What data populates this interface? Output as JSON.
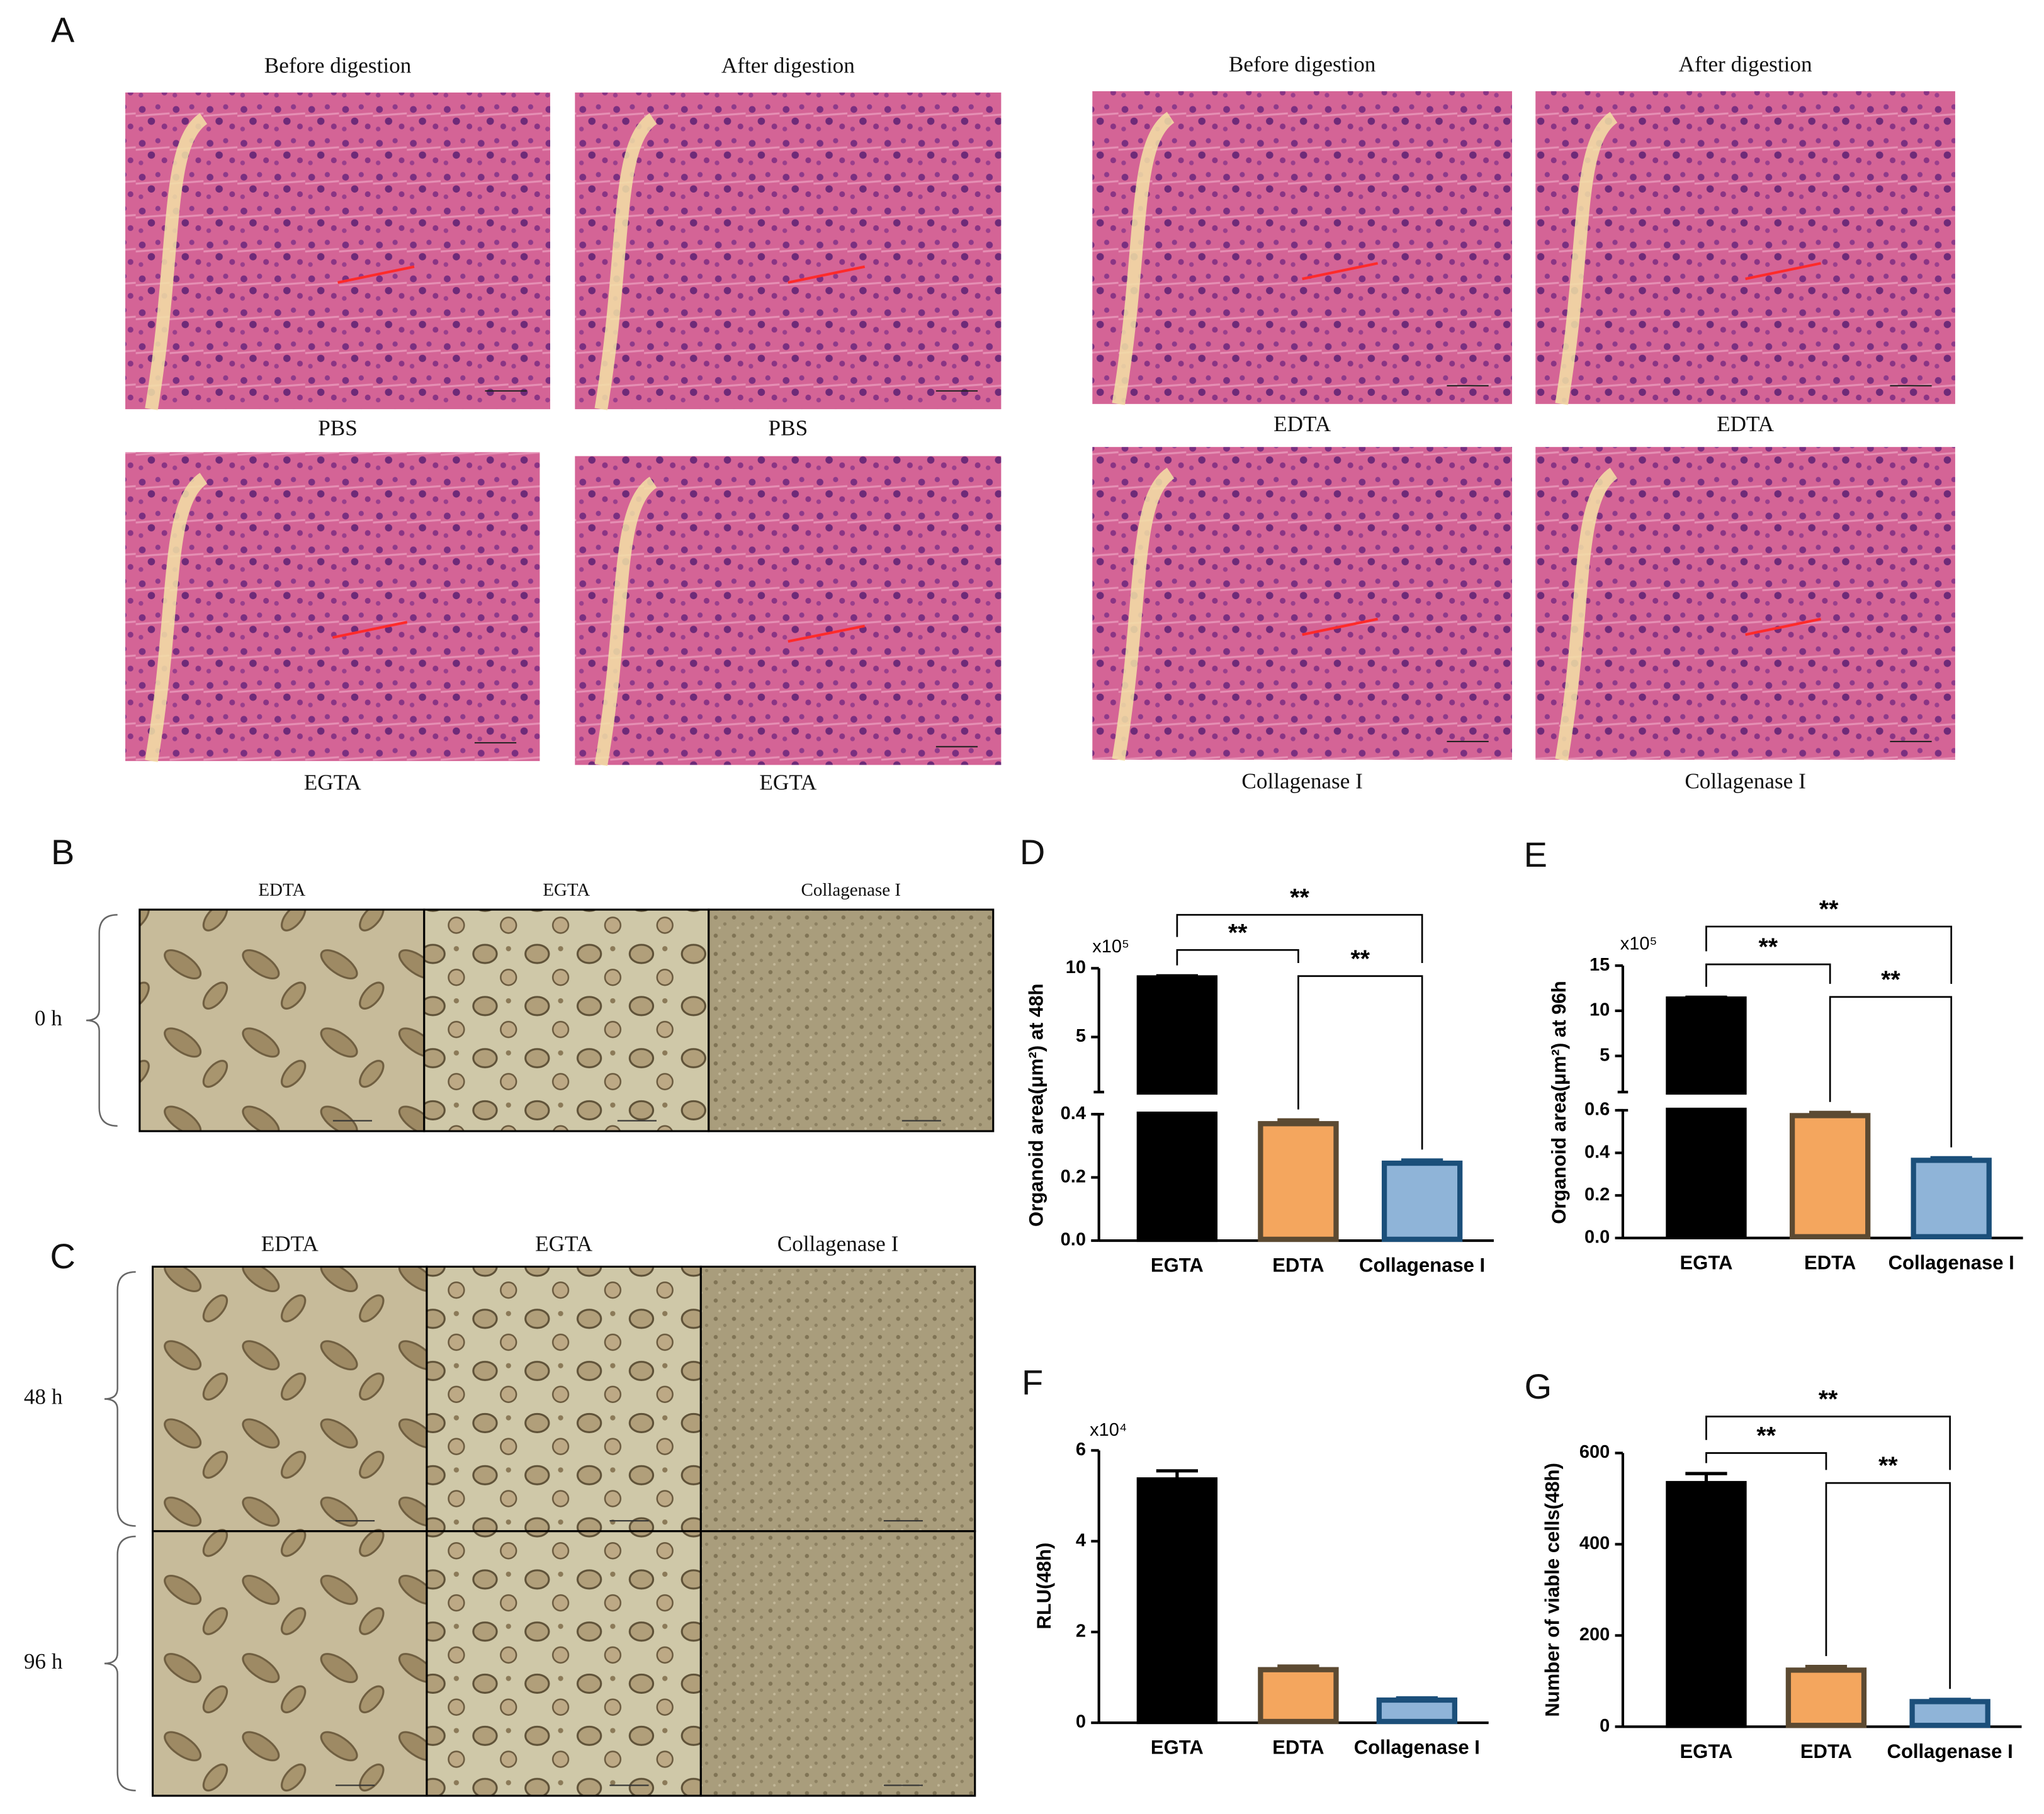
{
  "panel_labels": [
    "A",
    "B",
    "C",
    "D",
    "E",
    "F",
    "G"
  ],
  "panel_a": {
    "groups": [
      {
        "titles": [
          "Before digestion",
          "After digestion"
        ],
        "captions": [
          [
            "PBS",
            "PBS"
          ],
          [
            "EGTA",
            "EGTA"
          ]
        ]
      },
      {
        "titles": [
          "Before digestion",
          "After digestion"
        ],
        "captions": [
          [
            "EDTA",
            "EDTA"
          ],
          [
            "Collagenase I",
            "Collagenase I"
          ]
        ]
      }
    ]
  },
  "panel_b": {
    "columns": [
      "EDTA",
      "EGTA",
      "Collagenase I"
    ],
    "rows": [
      "0 h"
    ]
  },
  "panel_c": {
    "columns": [
      "EDTA",
      "EGTA",
      "Collagenase I"
    ],
    "rows": [
      "48 h",
      "96 h"
    ]
  },
  "chart_data": [
    {
      "type": "bar",
      "y_label": "Organoid area(μm²) at 48h",
      "multiplier": "x10⁵",
      "categories": [
        "EGTA",
        "EDTA",
        "Collagenase I"
      ],
      "values": [
        9.3,
        0.37,
        0.245
      ],
      "errors": [
        0.15,
        0.012,
        0.01
      ],
      "colors": [
        "#000000",
        "#f4a65e",
        "#8fb4d8"
      ],
      "edge_colors": [
        "#000000",
        "#5c4a32",
        "#1b4f7a"
      ],
      "y_segments": [
        {
          "ylim": [
            0,
            0.4
          ],
          "yticks": [
            {
              "value": 0,
              "label": "0.0"
            },
            {
              "value": 0.2,
              "label": "0.2"
            },
            {
              "value": 0.4,
              "label": "0.4"
            }
          ]
        },
        {
          "ylim": [
            1,
            10
          ],
          "yticks": [
            5,
            10
          ]
        }
      ],
      "annotations": [
        {
          "pair": [
            0,
            1
          ],
          "label": "**"
        },
        {
          "pair": [
            1,
            2
          ],
          "label": "**"
        },
        {
          "pair": [
            0,
            2
          ],
          "label": "**"
        }
      ]
    },
    {
      "type": "bar",
      "y_label": "Organoid area(μm²) at 96h",
      "multiplier": "x10⁵",
      "categories": [
        "EGTA",
        "EDTA",
        "Collagenase I"
      ],
      "values": [
        11.3,
        0.575,
        0.365
      ],
      "errors": [
        0.2,
        0.015,
        0.012
      ],
      "colors": [
        "#000000",
        "#f4a65e",
        "#8fb4d8"
      ],
      "edge_colors": [
        "#000000",
        "#5c4a32",
        "#1b4f7a"
      ],
      "y_segments": [
        {
          "ylim": [
            0,
            0.6
          ],
          "yticks": [
            {
              "value": 0,
              "label": "0.0"
            },
            {
              "value": 0.2,
              "label": "0.2"
            },
            {
              "value": 0.4,
              "label": "0.4"
            },
            {
              "value": 0.6,
              "label": "0.6"
            }
          ]
        },
        {
          "ylim": [
            1,
            15
          ],
          "yticks": [
            5,
            10,
            15
          ]
        }
      ],
      "annotations": [
        {
          "pair": [
            0,
            1
          ],
          "label": "**"
        },
        {
          "pair": [
            1,
            2
          ],
          "label": "**"
        },
        {
          "pair": [
            0,
            2
          ],
          "label": "**"
        }
      ]
    },
    {
      "type": "bar",
      "y_label": "RLU(48h)",
      "multiplier": "x10⁴",
      "categories": [
        "EGTA",
        "EDTA",
        "Collagenase I"
      ],
      "values": [
        5.35,
        1.17,
        0.5
      ],
      "errors": [
        0.2,
        0.08,
        0.05
      ],
      "colors": [
        "#000000",
        "#f4a65e",
        "#8fb4d8"
      ],
      "edge_colors": [
        "#000000",
        "#5c4a32",
        "#1b4f7a"
      ],
      "ylim": [
        0,
        6
      ],
      "yticks": [
        0,
        2,
        4,
        6
      ]
    },
    {
      "type": "bar",
      "y_label": "Number of viable cells(48h)",
      "categories": [
        "EGTA",
        "EDTA",
        "Collagenase I"
      ],
      "values": [
        533,
        124,
        55
      ],
      "errors": [
        22,
        8,
        5
      ],
      "colors": [
        "#000000",
        "#f4a65e",
        "#8fb4d8"
      ],
      "edge_colors": [
        "#000000",
        "#5c4a32",
        "#1b4f7a"
      ],
      "ylim": [
        0,
        600
      ],
      "yticks": [
        0,
        200,
        400,
        600
      ],
      "annotations": [
        {
          "pair": [
            0,
            1
          ],
          "label": "**"
        },
        {
          "pair": [
            1,
            2
          ],
          "label": "**"
        },
        {
          "pair": [
            0,
            2
          ],
          "label": "**"
        }
      ]
    }
  ]
}
